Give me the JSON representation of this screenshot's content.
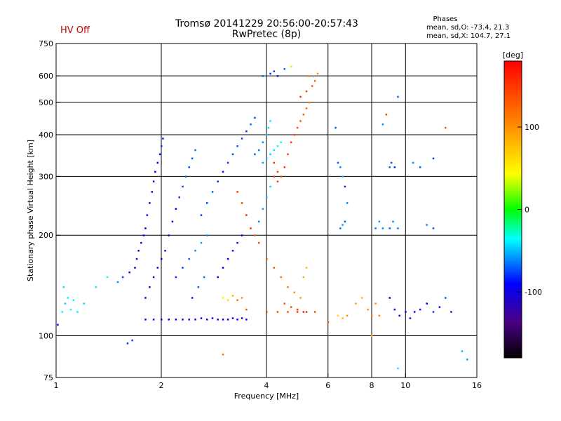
{
  "header": {
    "hv_status": "HV Off",
    "title_line1": "Tromsø 20141229 20:56:00-20:57:43",
    "title_line2": "RwPretec (8p)",
    "phases_title": "Phases",
    "phases_o": "mean, sd,O: -73.4, 21.3",
    "phases_x": "mean, sd,X: 104.7, 27.1"
  },
  "chart_data": {
    "type": "scatter",
    "xlabel": "Frequency [MHz]",
    "ylabel": "Stationary phase Virtual Height [km]",
    "x_scale": "log",
    "y_scale": "log",
    "xlim": [
      1,
      16
    ],
    "ylim": [
      75,
      750
    ],
    "x_ticks": [
      {
        "value": 1,
        "label": "1"
      },
      {
        "value": 2,
        "label": "2"
      },
      {
        "value": 4,
        "label": "4"
      },
      {
        "value": 6,
        "label": "6"
      },
      {
        "value": 8,
        "label": "8"
      },
      {
        "value": 10,
        "label": "10"
      },
      {
        "value": 16,
        "label": "16"
      }
    ],
    "x_grid": [
      2,
      4,
      6,
      8,
      10
    ],
    "y_ticks": [
      {
        "value": 75,
        "label": "75"
      },
      {
        "value": 100,
        "label": "100"
      },
      {
        "value": 200,
        "label": "200"
      },
      {
        "value": 300,
        "label": "300"
      },
      {
        "value": 400,
        "label": "400"
      },
      {
        "value": 500,
        "label": "500"
      },
      {
        "value": 600,
        "label": "600"
      },
      {
        "value": 750,
        "label": "750"
      }
    ],
    "y_grid": [
      100,
      200,
      300,
      400,
      500,
      600
    ],
    "grid": true,
    "colorbar": {
      "label": "[deg]",
      "range": [
        -180,
        180
      ],
      "ticks": [
        {
          "value": 100,
          "label": "100"
        },
        {
          "value": 0,
          "label": "0"
        },
        {
          "value": -100,
          "label": "-100"
        }
      ]
    },
    "points": [
      [
        1.01,
        108,
        -90
      ],
      [
        1.04,
        118,
        -40
      ],
      [
        1.06,
        125,
        -45
      ],
      [
        1.08,
        130,
        -40
      ],
      [
        1.05,
        140,
        -40
      ],
      [
        1.1,
        120,
        -35
      ],
      [
        1.12,
        128,
        -38
      ],
      [
        1.15,
        118,
        -40
      ],
      [
        1.2,
        125,
        -42
      ],
      [
        1.3,
        140,
        -40
      ],
      [
        1.4,
        150,
        -30
      ],
      [
        1.5,
        145,
        -60
      ],
      [
        1.55,
        150,
        -80
      ],
      [
        1.6,
        95,
        -80
      ],
      [
        1.65,
        97,
        -75
      ],
      [
        1.62,
        155,
        -95
      ],
      [
        1.68,
        160,
        -100
      ],
      [
        1.7,
        170,
        -105
      ],
      [
        1.72,
        180,
        -110
      ],
      [
        1.75,
        190,
        -100
      ],
      [
        1.78,
        200,
        -95
      ],
      [
        1.8,
        210,
        -90
      ],
      [
        1.82,
        230,
        -100
      ],
      [
        1.85,
        250,
        -110
      ],
      [
        1.88,
        270,
        -105
      ],
      [
        1.9,
        290,
        -100
      ],
      [
        1.92,
        310,
        -95
      ],
      [
        1.95,
        330,
        -90
      ],
      [
        1.98,
        350,
        -85
      ],
      [
        2.0,
        370,
        -80
      ],
      [
        2.02,
        390,
        -85
      ],
      [
        1.8,
        112,
        -100
      ],
      [
        1.9,
        112,
        -100
      ],
      [
        2.0,
        112,
        -95
      ],
      [
        2.1,
        112,
        -100
      ],
      [
        2.2,
        112,
        -95
      ],
      [
        2.3,
        112,
        -100
      ],
      [
        2.4,
        112,
        -95
      ],
      [
        2.5,
        112,
        -100
      ],
      [
        2.6,
        113,
        -95
      ],
      [
        2.7,
        112,
        -100
      ],
      [
        2.8,
        113,
        -95
      ],
      [
        2.9,
        112,
        -100
      ],
      [
        3.0,
        112,
        -95
      ],
      [
        3.1,
        112,
        -100
      ],
      [
        3.2,
        113,
        -90
      ],
      [
        3.3,
        112,
        -95
      ],
      [
        3.4,
        113,
        -100
      ],
      [
        3.5,
        112,
        -95
      ],
      [
        1.9,
        150,
        -110
      ],
      [
        1.95,
        160,
        -100
      ],
      [
        2.0,
        170,
        -95
      ],
      [
        2.05,
        180,
        -85
      ],
      [
        1.85,
        140,
        -105
      ],
      [
        1.8,
        130,
        -110
      ],
      [
        2.1,
        200,
        -95
      ],
      [
        2.15,
        220,
        -85
      ],
      [
        2.2,
        240,
        -90
      ],
      [
        2.25,
        260,
        -80
      ],
      [
        2.3,
        280,
        -75
      ],
      [
        2.35,
        300,
        -70
      ],
      [
        2.4,
        320,
        -75
      ],
      [
        2.45,
        340,
        -70
      ],
      [
        2.5,
        360,
        -65
      ],
      [
        2.2,
        150,
        -80
      ],
      [
        2.3,
        160,
        -75
      ],
      [
        2.4,
        170,
        -70
      ],
      [
        2.5,
        180,
        -60
      ],
      [
        2.6,
        190,
        -55
      ],
      [
        2.7,
        200,
        -60
      ],
      [
        2.45,
        130,
        -85
      ],
      [
        2.55,
        140,
        -70
      ],
      [
        2.65,
        150,
        -65
      ],
      [
        2.6,
        230,
        -80
      ],
      [
        2.7,
        250,
        -75
      ],
      [
        2.8,
        270,
        -70
      ],
      [
        2.9,
        290,
        -80
      ],
      [
        3.0,
        310,
        -85
      ],
      [
        3.1,
        330,
        -80
      ],
      [
        3.2,
        350,
        -75
      ],
      [
        3.3,
        370,
        -70
      ],
      [
        3.4,
        390,
        -75
      ],
      [
        3.5,
        410,
        -80
      ],
      [
        3.6,
        430,
        -70
      ],
      [
        3.7,
        450,
        -75
      ],
      [
        2.9,
        150,
        -95
      ],
      [
        3.0,
        160,
        -100
      ],
      [
        3.1,
        170,
        -90
      ],
      [
        3.2,
        180,
        -85
      ],
      [
        3.3,
        190,
        -95
      ],
      [
        3.4,
        200,
        -90
      ],
      [
        3.0,
        130,
        40
      ],
      [
        3.1,
        128,
        60
      ],
      [
        3.2,
        132,
        80
      ],
      [
        3.3,
        128,
        120
      ],
      [
        3.4,
        130,
        100
      ],
      [
        3.5,
        120,
        130
      ],
      [
        3.3,
        270,
        150
      ],
      [
        3.4,
        250,
        140
      ],
      [
        3.5,
        230,
        160
      ],
      [
        3.6,
        210,
        150
      ],
      [
        3.7,
        200,
        130
      ],
      [
        3.8,
        190,
        140
      ],
      [
        3.7,
        350,
        -70
      ],
      [
        3.8,
        360,
        -65
      ],
      [
        3.9,
        380,
        -60
      ],
      [
        4.0,
        400,
        -50
      ],
      [
        4.05,
        420,
        -45
      ],
      [
        4.1,
        440,
        -40
      ],
      [
        3.9,
        330,
        -55
      ],
      [
        4.0,
        340,
        -50
      ],
      [
        4.1,
        350,
        -45
      ],
      [
        4.2,
        360,
        -40
      ],
      [
        4.3,
        370,
        -35
      ],
      [
        4.4,
        380,
        -30
      ],
      [
        4.2,
        330,
        150
      ],
      [
        4.3,
        310,
        145
      ],
      [
        4.4,
        300,
        140
      ],
      [
        4.5,
        320,
        150
      ],
      [
        4.6,
        350,
        145
      ],
      [
        4.7,
        380,
        150
      ],
      [
        4.8,
        400,
        140
      ],
      [
        4.9,
        420,
        135
      ],
      [
        5.0,
        440,
        130
      ],
      [
        5.1,
        460,
        125
      ],
      [
        5.2,
        480,
        120
      ],
      [
        5.3,
        500,
        110
      ],
      [
        4.0,
        170,
        140
      ],
      [
        4.2,
        160,
        130
      ],
      [
        4.4,
        150,
        120
      ],
      [
        4.6,
        140,
        110
      ],
      [
        4.8,
        135,
        100
      ],
      [
        5.0,
        130,
        90
      ],
      [
        5.1,
        150,
        80
      ],
      [
        5.2,
        160,
        75
      ],
      [
        4.5,
        125,
        130
      ],
      [
        4.7,
        122,
        140
      ],
      [
        4.9,
        120,
        150
      ],
      [
        5.1,
        118,
        160
      ],
      [
        4.0,
        118,
        150
      ],
      [
        4.3,
        118,
        145
      ],
      [
        4.6,
        118,
        140
      ],
      [
        4.9,
        118,
        150
      ],
      [
        5.2,
        118,
        155
      ],
      [
        5.5,
        118,
        140
      ],
      [
        3.8,
        220,
        -60
      ],
      [
        3.9,
        240,
        -55
      ],
      [
        4.0,
        260,
        -50
      ],
      [
        4.1,
        280,
        -45
      ],
      [
        4.2,
        300,
        150
      ],
      [
        4.3,
        290,
        145
      ],
      [
        3.9,
        600,
        -70
      ],
      [
        4.1,
        610,
        -80
      ],
      [
        4.2,
        620,
        -75
      ],
      [
        4.3,
        600,
        -85
      ],
      [
        4.5,
        630,
        -70
      ],
      [
        4.7,
        640,
        60
      ],
      [
        5.0,
        520,
        150
      ],
      [
        5.2,
        540,
        140
      ],
      [
        5.4,
        560,
        130
      ],
      [
        5.5,
        580,
        120
      ],
      [
        5.3,
        600,
        110
      ],
      [
        5.6,
        610,
        100
      ],
      [
        6.3,
        420,
        -70
      ],
      [
        6.5,
        320,
        -60
      ],
      [
        6.6,
        300,
        -50
      ],
      [
        6.4,
        330,
        -70
      ],
      [
        6.7,
        280,
        -80
      ],
      [
        6.8,
        250,
        -60
      ],
      [
        6.5,
        210,
        -65
      ],
      [
        6.6,
        215,
        -55
      ],
      [
        6.7,
        220,
        -70
      ],
      [
        6.4,
        115,
        60
      ],
      [
        6.6,
        113,
        80
      ],
      [
        6.8,
        115,
        100
      ],
      [
        7.2,
        125,
        90
      ],
      [
        7.5,
        130,
        80
      ],
      [
        7.8,
        120,
        100
      ],
      [
        8.0,
        115,
        110
      ],
      [
        8.2,
        125,
        95
      ],
      [
        8.4,
        115,
        105
      ],
      [
        8.2,
        210,
        -65
      ],
      [
        8.4,
        220,
        -55
      ],
      [
        8.6,
        210,
        -60
      ],
      [
        9.0,
        210,
        -70
      ],
      [
        9.2,
        220,
        -60
      ],
      [
        9.5,
        210,
        -65
      ],
      [
        9.0,
        320,
        -70
      ],
      [
        9.1,
        330,
        -75
      ],
      [
        9.3,
        320,
        -80
      ],
      [
        8.6,
        430,
        -60
      ],
      [
        8.8,
        460,
        140
      ],
      [
        9.5,
        520,
        -70
      ],
      [
        9.0,
        130,
        -90
      ],
      [
        9.3,
        120,
        -95
      ],
      [
        9.6,
        115,
        -100
      ],
      [
        10.0,
        118,
        -90
      ],
      [
        10.3,
        113,
        -95
      ],
      [
        10.6,
        118,
        -100
      ],
      [
        11.0,
        120,
        -85
      ],
      [
        11.5,
        125,
        -90
      ],
      [
        12.0,
        118,
        -80
      ],
      [
        12.5,
        122,
        -95
      ],
      [
        13.0,
        130,
        -70
      ],
      [
        13.5,
        118,
        -85
      ],
      [
        10.5,
        330,
        -60
      ],
      [
        11.0,
        320,
        -70
      ],
      [
        12.0,
        340,
        -75
      ],
      [
        11.5,
        215,
        -60
      ],
      [
        12.0,
        210,
        -70
      ],
      [
        13.0,
        420,
        130
      ],
      [
        14.5,
        90,
        -50
      ],
      [
        15.0,
        85,
        -55
      ],
      [
        9.5,
        80,
        -40
      ],
      [
        3.0,
        88,
        120
      ],
      [
        8.0,
        100,
        90
      ],
      [
        6.0,
        110,
        140
      ]
    ]
  }
}
